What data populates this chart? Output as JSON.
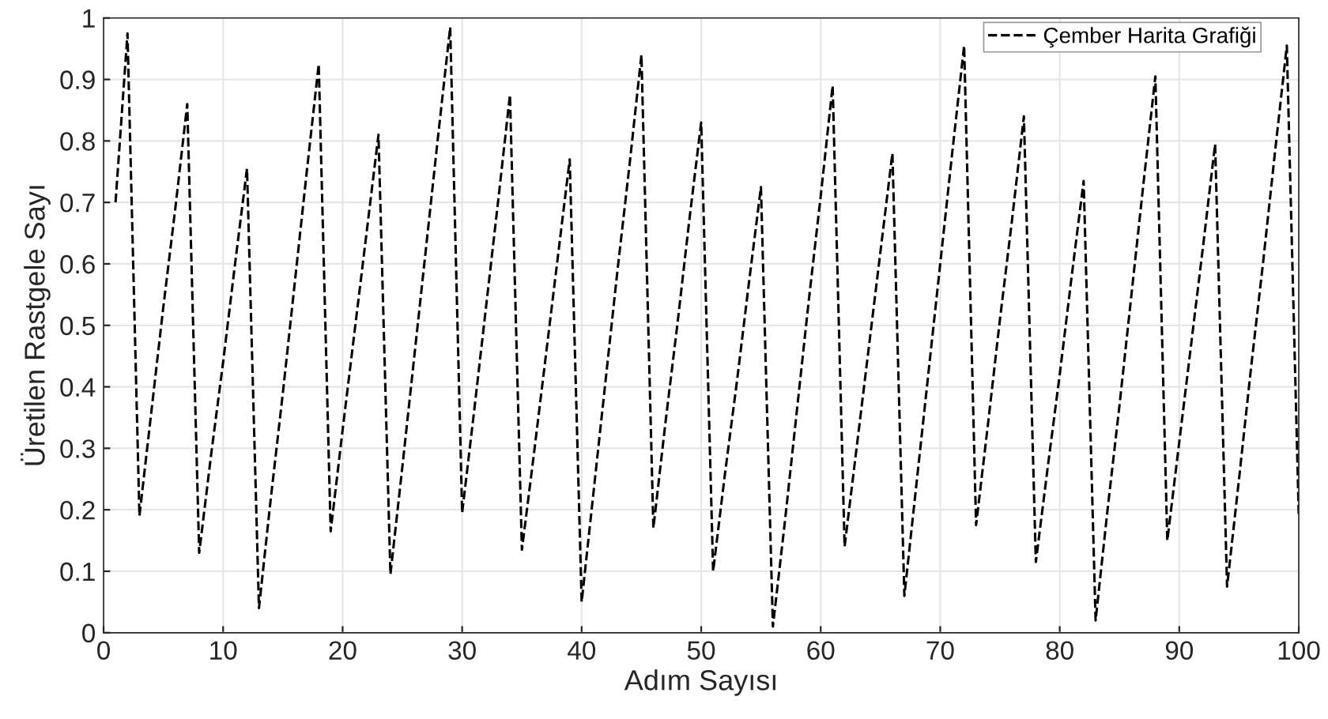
{
  "chart_data": {
    "type": "line",
    "xlabel": "Adım Sayısı",
    "ylabel": "Üretilen Rastgele Sayı",
    "x": [
      1,
      2,
      3,
      4,
      5,
      6,
      7,
      8,
      9,
      10,
      11,
      12,
      13,
      14,
      15,
      16,
      17,
      18,
      19,
      20,
      21,
      22,
      23,
      24,
      25,
      26,
      27,
      28,
      29,
      30,
      31,
      32,
      33,
      34,
      35,
      36,
      37,
      38,
      39,
      40,
      41,
      42,
      43,
      44,
      45,
      46,
      47,
      48,
      49,
      50,
      51,
      52,
      53,
      54,
      55,
      56,
      57,
      58,
      59,
      60,
      61,
      62,
      63,
      64,
      65,
      66,
      67,
      68,
      69,
      70,
      71,
      72,
      73,
      74,
      75,
      76,
      77,
      78,
      79,
      80,
      81,
      82,
      83,
      84,
      85,
      86,
      87,
      88,
      89,
      90,
      91,
      92,
      93,
      94,
      95,
      96,
      97,
      98,
      99,
      100
    ],
    "series": [
      {
        "name": "Çember Harita Grafiği",
        "color": "#000000",
        "line_style": "dashed",
        "values": [
          0.7,
          0.975,
          0.19,
          0.36,
          0.53,
          0.69,
          0.86,
          0.13,
          0.29,
          0.44,
          0.6,
          0.755,
          0.04,
          0.22,
          0.39,
          0.57,
          0.75,
          0.925,
          0.165,
          0.33,
          0.49,
          0.65,
          0.81,
          0.095,
          0.27,
          0.45,
          0.63,
          0.81,
          0.985,
          0.195,
          0.36,
          0.53,
          0.7,
          0.875,
          0.135,
          0.29,
          0.45,
          0.61,
          0.77,
          0.05,
          0.23,
          0.41,
          0.59,
          0.76,
          0.94,
          0.17,
          0.34,
          0.5,
          0.67,
          0.83,
          0.1,
          0.26,
          0.41,
          0.57,
          0.725,
          0.01,
          0.18,
          0.36,
          0.54,
          0.71,
          0.89,
          0.14,
          0.3,
          0.46,
          0.62,
          0.78,
          0.06,
          0.24,
          0.42,
          0.6,
          0.78,
          0.955,
          0.175,
          0.34,
          0.51,
          0.67,
          0.84,
          0.115,
          0.27,
          0.42,
          0.58,
          0.735,
          0.02,
          0.2,
          0.37,
          0.55,
          0.73,
          0.905,
          0.15,
          0.31,
          0.47,
          0.63,
          0.795,
          0.075,
          0.25,
          0.43,
          0.6,
          0.78,
          0.955,
          0.19
        ]
      }
    ],
    "xlim": [
      0,
      100
    ],
    "ylim": [
      0,
      1
    ],
    "xticks": [
      0,
      10,
      20,
      30,
      40,
      50,
      60,
      70,
      80,
      90,
      100
    ],
    "yticks": [
      0,
      0.1,
      0.2,
      0.3,
      0.4,
      0.5,
      0.6,
      0.7,
      0.8,
      0.9,
      1
    ],
    "grid": true,
    "legend": "top right"
  }
}
